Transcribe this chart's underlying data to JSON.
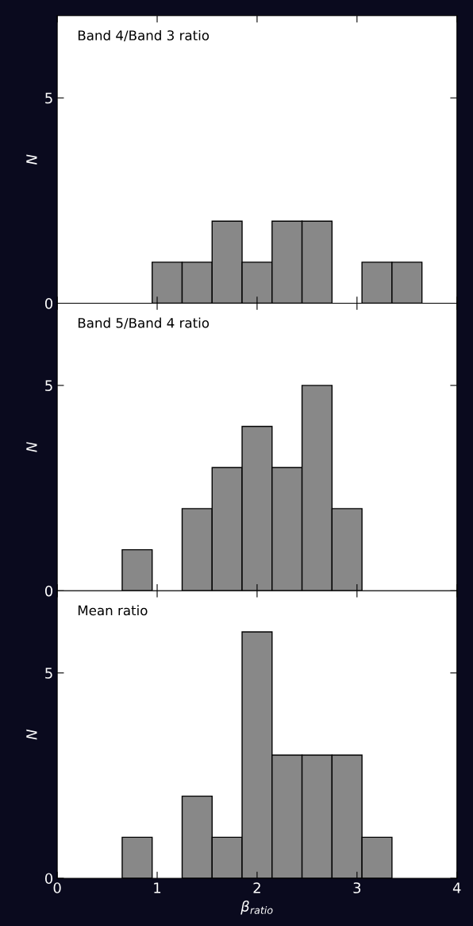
{
  "chart_data": [
    {
      "type": "histogram",
      "title": "Band 4/Band 3 ratio",
      "ylabel": "N",
      "bins": [
        0.65,
        0.95,
        1.25,
        1.55,
        1.85,
        2.15,
        2.45,
        2.75,
        3.05,
        3.35,
        3.65
      ],
      "values": [
        0,
        1,
        1,
        2,
        1,
        2,
        2,
        0,
        1,
        1
      ],
      "color": "#888888",
      "xlim": [
        0,
        4
      ],
      "ylim": [
        0,
        7
      ],
      "yticks": [
        0,
        5
      ],
      "tick_labels": "y"
    },
    {
      "type": "histogram",
      "title": "Band 5/Band 4 ratio",
      "ylabel": "N",
      "bins": [
        0.65,
        0.95,
        1.25,
        1.55,
        1.85,
        2.15,
        2.45,
        2.75,
        3.05,
        3.35,
        3.65
      ],
      "values": [
        1,
        0,
        2,
        3,
        4,
        3,
        5,
        2,
        0,
        0
      ],
      "color": "#888888",
      "xlim": [
        0,
        4
      ],
      "ylim": [
        0,
        7
      ],
      "yticks": [
        0,
        5
      ],
      "tick_labels": "y"
    },
    {
      "type": "histogram",
      "title": "Mean ratio",
      "ylabel": "N",
      "xlabel": "β$_{ratio}$",
      "bins": [
        0.65,
        0.95,
        1.25,
        1.55,
        1.85,
        2.15,
        2.45,
        2.75,
        3.05,
        3.35,
        3.65
      ],
      "values": [
        1,
        0,
        2,
        1,
        6,
        3,
        3,
        3,
        1,
        0
      ],
      "color": "#888888",
      "xlim": [
        0,
        4
      ],
      "ylim": [
        0,
        7
      ],
      "xticks": [
        0,
        1,
        2,
        3,
        4
      ],
      "yticks": [
        0,
        5
      ]
    }
  ]
}
